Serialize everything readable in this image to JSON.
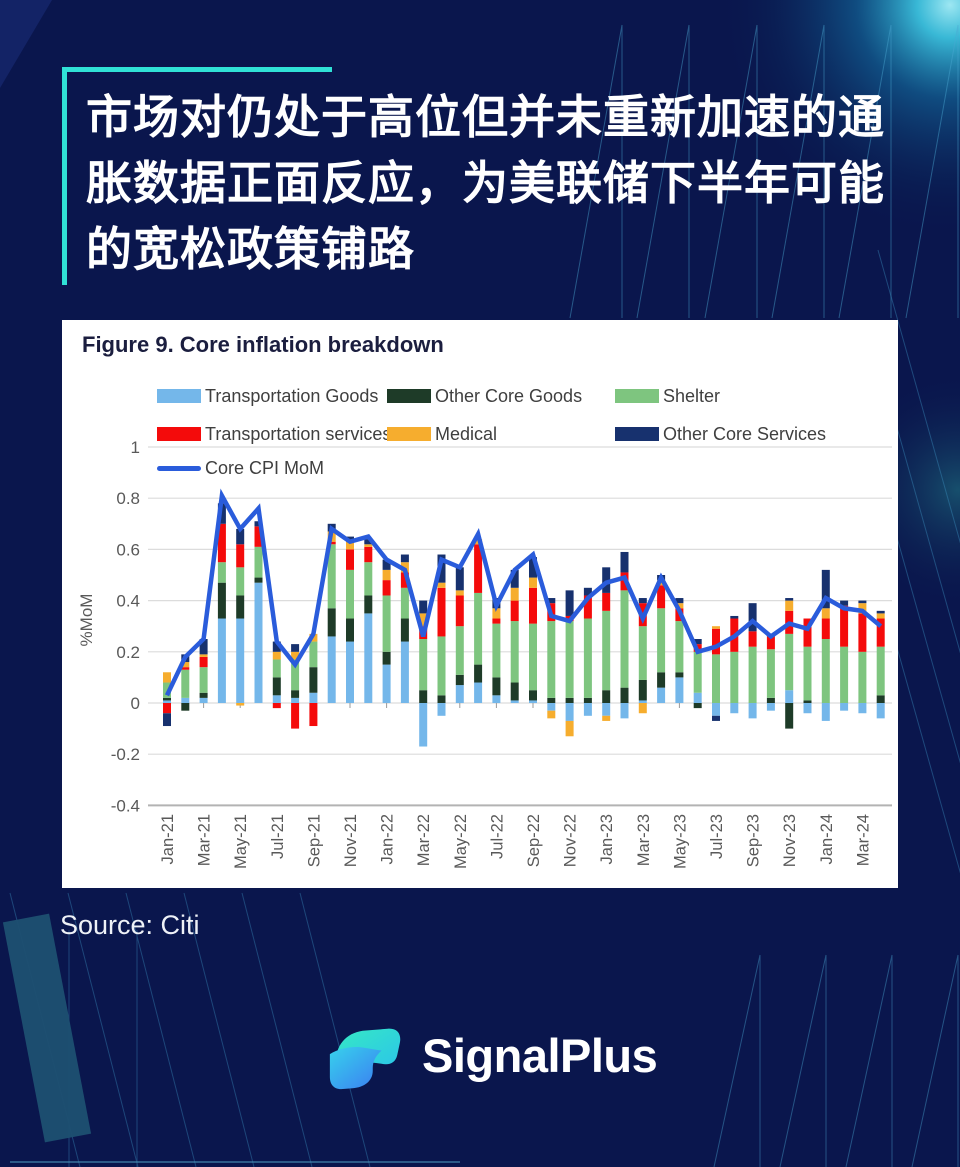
{
  "page": {
    "background": "#0a164d",
    "accent_cyan": "#30e1d6"
  },
  "header": {
    "title_lines": [
      "市场对仍处于高位但并未重新加速的通",
      "胀数据正面反应，为美联储下半年可能",
      "的宽松政策铺路"
    ]
  },
  "chart_data": {
    "type": "bar",
    "subtype": "stacked-bar-with-line",
    "title": "Figure 9. Core inflation breakdown",
    "xlabel": "",
    "ylabel": "%MoM",
    "ylim": [
      -0.4,
      1
    ],
    "grid": "horizontal",
    "legend_position": "top",
    "xtick_every": 2,
    "yticks": [
      {
        "v": 1,
        "label": "1"
      },
      {
        "v": 0.8,
        "label": "0.8"
      },
      {
        "v": 0.6,
        "label": "0.6"
      },
      {
        "v": 0.4,
        "label": "0.4"
      },
      {
        "v": 0.2,
        "label": "0.2"
      },
      {
        "v": 0,
        "label": "0"
      },
      {
        "v": -0.2,
        "label": "-0.2"
      },
      {
        "v": -0.4,
        "label": "-0.4"
      }
    ],
    "months": [
      "Jan-21",
      "Feb-21",
      "Mar-21",
      "Apr-21",
      "May-21",
      "Jun-21",
      "Jul-21",
      "Aug-21",
      "Sep-21",
      "Oct-21",
      "Nov-21",
      "Dec-21",
      "Jan-22",
      "Feb-22",
      "Mar-22",
      "Apr-22",
      "May-22",
      "Jun-22",
      "Jul-22",
      "Aug-22",
      "Sep-22",
      "Oct-22",
      "Nov-22",
      "Dec-22",
      "Jan-23",
      "Feb-23",
      "Mar-23",
      "Apr-23",
      "May-23",
      "Jun-23",
      "Jul-23",
      "Aug-23",
      "Sep-23",
      "Oct-23",
      "Nov-23",
      "Dec-23",
      "Jan-24",
      "Feb-24",
      "Mar-24",
      "Apr-24"
    ],
    "series": [
      {
        "name": "Transportation Goods",
        "color": "#74b7ea",
        "values": [
          0.01,
          0.02,
          0.02,
          0.33,
          0.33,
          0.47,
          0.03,
          0.02,
          0.04,
          0.26,
          0.24,
          0.35,
          0.15,
          0.24,
          -0.17,
          -0.05,
          0.07,
          0.08,
          0.03,
          0.01,
          0.01,
          -0.03,
          -0.07,
          -0.05,
          -0.05,
          -0.06,
          0.01,
          0.06,
          0.1,
          0.04,
          -0.05,
          -0.04,
          -0.06,
          -0.03,
          0.05,
          -0.04,
          -0.07,
          -0.03,
          -0.04,
          -0.06
        ]
      },
      {
        "name": "Other Core Goods",
        "color": "#1e3b28",
        "values": [
          0.01,
          -0.03,
          0.02,
          0.14,
          0.09,
          0.02,
          0.07,
          0.03,
          0.1,
          0.11,
          0.09,
          0.07,
          0.05,
          0.09,
          0.05,
          0.03,
          0.04,
          0.07,
          0.07,
          0.07,
          0.04,
          0.02,
          0.02,
          0.02,
          0.05,
          0.06,
          0.08,
          0.06,
          0.02,
          -0.02,
          0.0,
          0.0,
          0.0,
          0.02,
          -0.1,
          0.01,
          0.0,
          0.0,
          0.0,
          0.03
        ]
      },
      {
        "name": "Shelter",
        "color": "#7ec57f",
        "values": [
          0.06,
          0.11,
          0.1,
          0.08,
          0.11,
          0.12,
          0.07,
          0.12,
          0.1,
          0.25,
          0.19,
          0.13,
          0.22,
          0.12,
          0.2,
          0.23,
          0.19,
          0.28,
          0.21,
          0.24,
          0.26,
          0.3,
          0.3,
          0.31,
          0.31,
          0.38,
          0.21,
          0.25,
          0.2,
          0.16,
          0.19,
          0.2,
          0.22,
          0.19,
          0.22,
          0.21,
          0.25,
          0.22,
          0.2,
          0.19
        ]
      },
      {
        "name": "Transportation services",
        "color": "#f40b0b",
        "values": [
          -0.04,
          0.01,
          0.04,
          0.15,
          0.09,
          0.08,
          -0.02,
          -0.1,
          -0.09,
          0.01,
          0.08,
          0.06,
          0.06,
          0.06,
          0.05,
          0.19,
          0.12,
          0.19,
          0.02,
          0.08,
          0.14,
          0.07,
          0.02,
          0.09,
          0.07,
          0.07,
          0.09,
          0.09,
          0.05,
          0.03,
          0.1,
          0.13,
          0.06,
          0.05,
          0.09,
          0.11,
          0.08,
          0.16,
          0.15,
          0.11
        ]
      },
      {
        "name": "Medical",
        "color": "#f6ad2e",
        "values": [
          0.04,
          0.02,
          0.01,
          0.0,
          -0.01,
          0.0,
          0.03,
          0.03,
          0.03,
          0.04,
          0.03,
          0.01,
          0.04,
          0.04,
          0.05,
          0.02,
          0.02,
          0.02,
          0.04,
          0.05,
          0.04,
          -0.03,
          -0.06,
          0.0,
          -0.02,
          0.0,
          -0.04,
          0.02,
          0.02,
          0.0,
          0.01,
          0.0,
          0.0,
          0.0,
          0.04,
          0.0,
          0.04,
          0.0,
          0.04,
          0.02
        ]
      },
      {
        "name": "Other Core Services",
        "color": "#17316e",
        "values": [
          -0.05,
          0.03,
          0.06,
          0.08,
          0.06,
          0.02,
          0.04,
          0.03,
          0.0,
          0.03,
          0.02,
          0.02,
          0.04,
          0.03,
          0.05,
          0.11,
          0.09,
          0.0,
          0.04,
          0.07,
          0.08,
          0.02,
          0.1,
          0.03,
          0.1,
          0.08,
          0.02,
          0.02,
          0.02,
          0.02,
          -0.02,
          0.01,
          0.11,
          0.01,
          0.01,
          0.0,
          0.15,
          0.02,
          0.01,
          0.01
        ]
      }
    ],
    "line": {
      "name": "Core CPI MoM",
      "color": "#2a5cdb",
      "values": [
        0.03,
        0.18,
        0.25,
        0.81,
        0.68,
        0.76,
        0.24,
        0.15,
        0.27,
        0.68,
        0.63,
        0.65,
        0.56,
        0.52,
        0.26,
        0.56,
        0.53,
        0.66,
        0.38,
        0.52,
        0.58,
        0.34,
        0.32,
        0.41,
        0.47,
        0.49,
        0.33,
        0.49,
        0.36,
        0.2,
        0.22,
        0.26,
        0.32,
        0.26,
        0.31,
        0.29,
        0.41,
        0.37,
        0.36,
        0.3
      ]
    }
  },
  "source": {
    "label": "Source: Citi"
  },
  "brand": {
    "name": "SignalPlus"
  }
}
